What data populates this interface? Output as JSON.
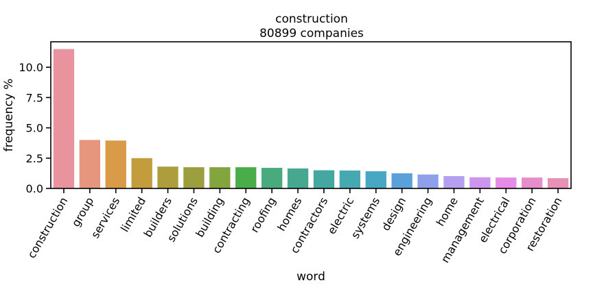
{
  "chart_data": {
    "type": "bar",
    "title_line1": "construction",
    "title_line2": "80899 companies",
    "xlabel": "word",
    "ylabel": "frequency %",
    "ylim": [
      0,
      12.1
    ],
    "yticks": [
      "0.0",
      "2.5",
      "5.0",
      "7.5",
      "10.0"
    ],
    "ytick_values": [
      0,
      2.5,
      5.0,
      7.5,
      10.0
    ],
    "grid": false,
    "categories": [
      "construction",
      "group",
      "services",
      "limited",
      "builders",
      "solutions",
      "building",
      "contracting",
      "roofing",
      "homes",
      "contractors",
      "electric",
      "systems",
      "design",
      "engineering",
      "home",
      "management",
      "electrical",
      "corporation",
      "restoration"
    ],
    "values": [
      11.5,
      4.0,
      3.95,
      2.5,
      1.8,
      1.75,
      1.75,
      1.75,
      1.7,
      1.65,
      1.5,
      1.48,
      1.42,
      1.25,
      1.15,
      1.02,
      0.92,
      0.9,
      0.9,
      0.85
    ],
    "colors": [
      "#e8939e",
      "#e6967c",
      "#d99b47",
      "#c39c3c",
      "#ae9d3d",
      "#9b9f3d",
      "#83a53d",
      "#49ae4a",
      "#48ab7d",
      "#46a98f",
      "#45a8a0",
      "#46a9b1",
      "#48a7c2",
      "#5aa1d9",
      "#8e9feb",
      "#b49ff0",
      "#cd95ed",
      "#e68be8",
      "#e88dcb",
      "#e890b5"
    ]
  }
}
